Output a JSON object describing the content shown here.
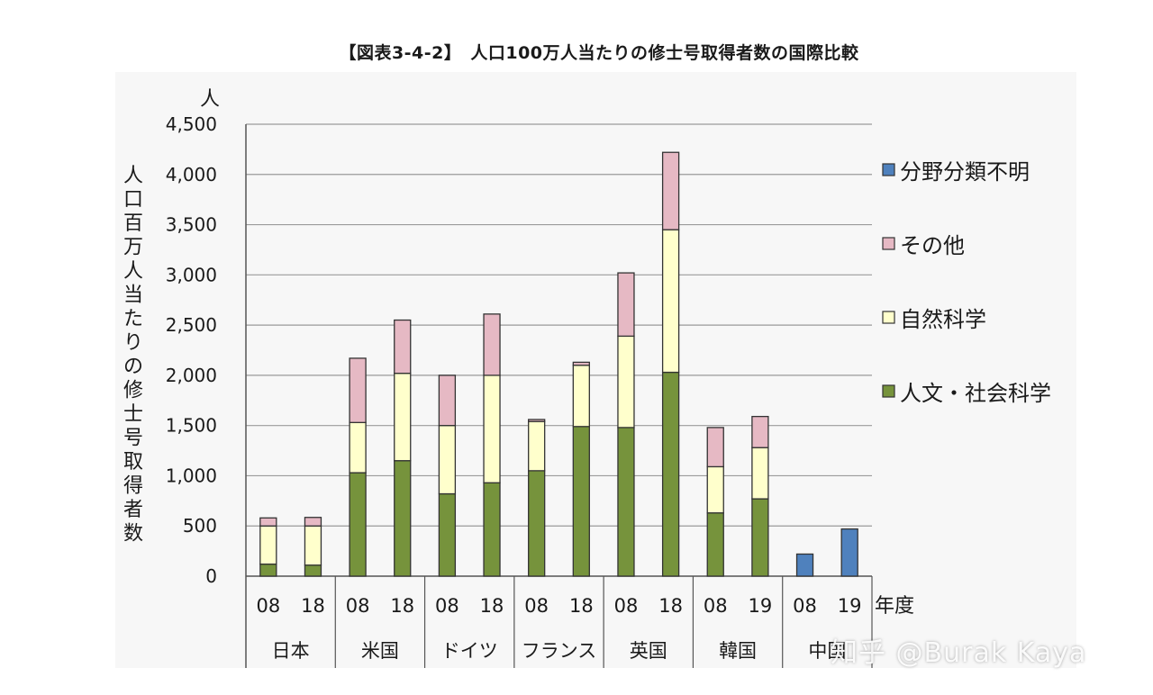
{
  "title": "【図表3-4-2】　人口100万人当たりの修士号取得者数の国際比較",
  "watermark": "知乎 @Burak Kaya",
  "chart_data": {
    "type": "bar",
    "stacked": true,
    "y_unit_label": "人",
    "ylabel": "人口百万人当たりの修士号取得者数",
    "xlabel": "年度",
    "ylim": [
      0,
      4500
    ],
    "y_ticks": [
      "0",
      "500",
      "1,000",
      "1,500",
      "2,000",
      "2,500",
      "3,000",
      "3,500",
      "4,000",
      "4,500"
    ],
    "grid": true,
    "legend_position": "right",
    "countries": [
      {
        "name": "日本",
        "years": [
          "08",
          "18"
        ]
      },
      {
        "name": "米国",
        "years": [
          "08",
          "18"
        ]
      },
      {
        "name": "ドイツ",
        "years": [
          "08",
          "18"
        ]
      },
      {
        "name": "フランス",
        "years": [
          "08",
          "18"
        ]
      },
      {
        "name": "英国",
        "years": [
          "08",
          "18"
        ]
      },
      {
        "name": "韓国",
        "years": [
          "08",
          "19"
        ]
      },
      {
        "name": "中国",
        "years": [
          "08",
          "19"
        ]
      }
    ],
    "series": [
      {
        "name": "人文・社会科学",
        "color": "#76933c",
        "values": [
          120,
          110,
          1030,
          1150,
          820,
          930,
          1050,
          1490,
          1480,
          2030,
          630,
          770,
          0,
          0
        ]
      },
      {
        "name": "自然科学",
        "color": "#ffffcc",
        "values": [
          380,
          390,
          500,
          870,
          680,
          1070,
          490,
          610,
          910,
          1420,
          460,
          510,
          0,
          0
        ]
      },
      {
        "name": "その他",
        "color": "#e6b9c4",
        "values": [
          80,
          85,
          640,
          530,
          500,
          610,
          20,
          30,
          630,
          770,
          390,
          310,
          0,
          0
        ]
      },
      {
        "name": "分野分類不明",
        "color": "#4f81bd",
        "values": [
          0,
          0,
          0,
          0,
          0,
          0,
          0,
          0,
          0,
          0,
          0,
          0,
          220,
          470
        ]
      }
    ],
    "legend_order": [
      "分野分類不明",
      "その他",
      "自然科学",
      "人文・社会科学"
    ]
  }
}
